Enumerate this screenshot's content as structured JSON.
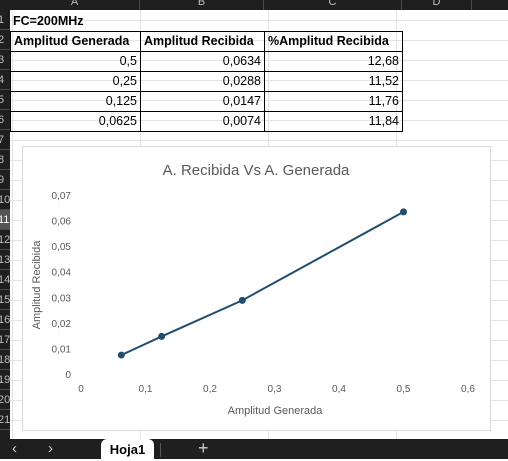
{
  "columns": [
    "A",
    "B",
    "C",
    "D"
  ],
  "rows": [
    "1",
    "2",
    "3",
    "4",
    "5",
    "6",
    "7",
    "8",
    "9",
    "10",
    "11",
    "12",
    "13",
    "14",
    "15",
    "16",
    "17",
    "18",
    "19",
    "20",
    "21"
  ],
  "sheet_title": "FC=200MHz",
  "table": {
    "headers": [
      "Amplitud Generada",
      "Amplitud Recibida",
      "%Amplitud Recibida"
    ],
    "rows": [
      [
        "0,5",
        "0,0634",
        "12,68"
      ],
      [
        "0,25",
        "0,0288",
        "11,52"
      ],
      [
        "0,125",
        "0,0147",
        "11,76"
      ],
      [
        "0,0625",
        "0,0074",
        "11,84"
      ]
    ]
  },
  "chart_data": {
    "type": "scatter",
    "title": "A. Recibida Vs A. Generada",
    "xlabel": "Amplitud Generada",
    "ylabel": "Amplitud Recibida",
    "x": [
      0.0625,
      0.125,
      0.25,
      0.5
    ],
    "y": [
      0.0074,
      0.0147,
      0.0288,
      0.0634
    ],
    "xlim": [
      0,
      0.6
    ],
    "ylim": [
      0,
      0.07
    ],
    "xticks": [
      "0",
      "0,1",
      "0,2",
      "0,3",
      "0,4",
      "0,5",
      "0,6"
    ],
    "yticks": [
      "0",
      "0,01",
      "0,02",
      "0,03",
      "0,04",
      "0,05",
      "0,06",
      "0,07"
    ],
    "series_color": "#1f4e6e",
    "lines_connected": true,
    "grid": false
  },
  "tabs": {
    "prev_icon": "chevron-left-icon",
    "next_icon": "chevron-right-icon",
    "prev_glyph": "‹",
    "next_glyph": "›",
    "active": "Hoja1",
    "add_glyph": "+"
  }
}
